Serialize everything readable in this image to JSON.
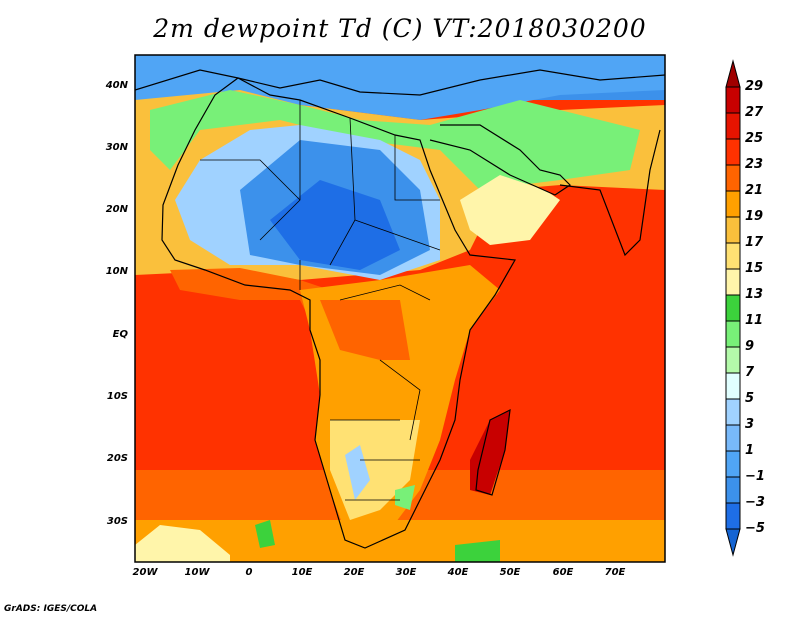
{
  "title": "2m dewpoint Td (C) VT:2018030200",
  "y_axis_labels": [
    "40N",
    "30N",
    "20N",
    "10N",
    "EQ",
    "10S",
    "20S",
    "30S"
  ],
  "x_axis_labels": [
    "20W",
    "10W",
    "0",
    "10E",
    "20E",
    "30E",
    "40E",
    "50E",
    "60E",
    "70E"
  ],
  "colorbar": {
    "labels": [
      "29",
      "27",
      "25",
      "23",
      "21",
      "19",
      "17",
      "15",
      "13",
      "11",
      "9",
      "7",
      "5",
      "3",
      "1",
      "−1",
      "−3",
      "−5"
    ],
    "colors": [
      "#a00000",
      "#c80000",
      "#e61400",
      "#ff3200",
      "#ff6400",
      "#ffa000",
      "#fac03c",
      "#ffe173",
      "#fff5aa",
      "#3cd23c",
      "#78f078",
      "#b4faaa",
      "#e1ffff",
      "#a0d2ff",
      "#78b9fa",
      "#50a5f5",
      "#3c91eb",
      "#1e6ee6",
      "#1464d2"
    ]
  },
  "credit": "GrADS: IGES/COLA"
}
